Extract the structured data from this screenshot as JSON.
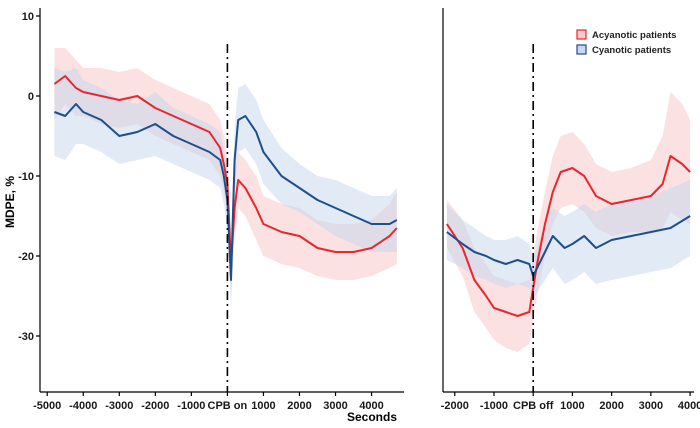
{
  "chart_data": {
    "type": "line",
    "ylabel": "MDPE, %",
    "xlabel": "Seconds",
    "ylim": [
      -37,
      11
    ],
    "y_ticks": [
      10,
      0,
      -10,
      -20,
      -30
    ],
    "legend": {
      "placement": "top-right",
      "entries": [
        {
          "name": "Acyanotic patients",
          "color": "#e8262d",
          "band_color": "#f7c9cb"
        },
        {
          "name": "Cyanotic patients",
          "color": "#1f4e8c",
          "band_color": "#c9d8ec"
        }
      ]
    },
    "panels": [
      {
        "xlim": [
          -5200,
          4900
        ],
        "x_ticks": [
          -5000,
          -4000,
          -3000,
          -2000,
          -1000,
          1000,
          2000,
          3000,
          4000
        ],
        "x_tick_labels": [
          "-5000",
          "-4000",
          "-3000",
          "-2000",
          "-1000",
          "1000",
          "2000",
          "3000",
          "4000"
        ],
        "event": {
          "x": 0,
          "label": "CPB on"
        },
        "series": [
          {
            "name": "Acyanotic patients",
            "x": [
              -4800,
              -4500,
              -4200,
              -4000,
              -3500,
              -3000,
              -2500,
              -2000,
              -1500,
              -1000,
              -500,
              -200,
              -100,
              0,
              100,
              200,
              300,
              500,
              800,
              1000,
              1500,
              2000,
              2500,
              3000,
              3500,
              4000,
              4500,
              4700
            ],
            "y": [
              1.5,
              2.5,
              1.0,
              0.5,
              0,
              -0.5,
              0,
              -1.5,
              -2.5,
              -3.5,
              -4.5,
              -6.5,
              -8.5,
              -11.0,
              -21.0,
              -14.0,
              -10.5,
              -11.5,
              -14.0,
              -16.0,
              -17.0,
              -17.5,
              -19.0,
              -19.5,
              -19.5,
              -19.0,
              -17.5,
              -16.5
            ],
            "upper": [
              6.0,
              6.0,
              4.5,
              3.5,
              3.5,
              3.0,
              3.5,
              2.0,
              1.0,
              0,
              -1.0,
              -3.0,
              -5.0,
              -8.0,
              -17.0,
              -10.0,
              -7.0,
              -8.0,
              -10.0,
              -12.5,
              -13.5,
              -14.0,
              -15.5,
              -16.0,
              -16.0,
              -15.5,
              -13.5,
              -12.0
            ],
            "lower": [
              -3.0,
              -1.0,
              -2.5,
              -2.5,
              -3.5,
              -4.0,
              -3.5,
              -5.0,
              -6.0,
              -7.0,
              -8.0,
              -10.0,
              -12.0,
              -14.5,
              -25.0,
              -18.0,
              -14.0,
              -15.0,
              -18.0,
              -20.0,
              -21.0,
              -21.5,
              -22.5,
              -23.0,
              -23.0,
              -22.5,
              -21.5,
              -21.0
            ]
          },
          {
            "name": "Cyanotic patients",
            "x": [
              -4800,
              -4500,
              -4200,
              -4000,
              -3500,
              -3000,
              -2500,
              -2000,
              -1500,
              -1000,
              -500,
              -200,
              -100,
              0,
              100,
              200,
              300,
              500,
              800,
              1000,
              1500,
              2000,
              2500,
              3000,
              3500,
              4000,
              4500,
              4700
            ],
            "y": [
              -2.0,
              -2.5,
              -1.0,
              -2.0,
              -3.0,
              -5.0,
              -4.5,
              -3.5,
              -5.0,
              -6.0,
              -7.0,
              -8.0,
              -10.0,
              -13.0,
              -23.0,
              -8.0,
              -3.0,
              -2.5,
              -4.5,
              -7.0,
              -10.0,
              -11.5,
              -13.0,
              -14.0,
              -15.0,
              -16.0,
              -16.0,
              -15.5
            ],
            "upper": [
              3.5,
              3.0,
              3.5,
              2.0,
              1.0,
              -0.5,
              -1.0,
              0.5,
              -1.5,
              -2.5,
              -3.5,
              -4.5,
              -6.5,
              -9.5,
              -18.0,
              -4.0,
              1.0,
              1.5,
              -0.5,
              -3.0,
              -6.5,
              -8.5,
              -10.0,
              -10.5,
              -11.5,
              -12.5,
              -12.5,
              -11.5
            ],
            "lower": [
              -7.5,
              -8.0,
              -6.0,
              -6.0,
              -7.0,
              -8.5,
              -8.0,
              -7.5,
              -8.5,
              -9.5,
              -10.5,
              -11.5,
              -13.5,
              -16.5,
              -27.0,
              -12.0,
              -7.0,
              -6.5,
              -8.5,
              -11.0,
              -13.5,
              -14.5,
              -16.0,
              -17.5,
              -18.5,
              -19.5,
              -19.5,
              -19.5
            ]
          }
        ]
      },
      {
        "xlim": [
          -2300,
          4100
        ],
        "x_ticks": [
          -2000,
          -1000,
          1000,
          2000,
          3000,
          4000
        ],
        "x_tick_labels": [
          "-2000",
          "-1000",
          "1000",
          "2000",
          "3000",
          "4000"
        ],
        "event": {
          "x": 0,
          "label": "CPB off"
        },
        "series": [
          {
            "name": "Acyanotic patients",
            "x": [
              -2200,
              -1800,
              -1500,
              -1200,
              -1000,
              -700,
              -400,
              -100,
              0,
              100,
              300,
              500,
              700,
              1000,
              1300,
              1600,
              2000,
              2500,
              3000,
              3300,
              3500,
              3800,
              4000
            ],
            "y": [
              -16.0,
              -19.0,
              -23.0,
              -25.0,
              -26.5,
              -27.0,
              -27.5,
              -27.0,
              -24.0,
              -21.0,
              -16.0,
              -12.0,
              -9.5,
              -9.0,
              -10.0,
              -12.5,
              -13.5,
              -13.0,
              -12.5,
              -11.0,
              -7.5,
              -8.5,
              -9.5
            ],
            "upper": [
              -13.0,
              -15.5,
              -19.0,
              -21.0,
              -22.5,
              -23.0,
              -23.5,
              -23.0,
              -20.0,
              -17.0,
              -12.0,
              -7.5,
              -5.0,
              -4.5,
              -6.0,
              -8.5,
              -9.5,
              -9.0,
              -8.0,
              -5.0,
              0.5,
              -1.0,
              -3.0
            ],
            "lower": [
              -19.0,
              -22.5,
              -27.0,
              -29.0,
              -30.5,
              -31.5,
              -32.0,
              -31.0,
              -28.0,
              -25.0,
              -20.0,
              -16.0,
              -14.0,
              -13.5,
              -14.5,
              -16.5,
              -17.5,
              -17.0,
              -17.0,
              -16.5,
              -14.5,
              -15.5,
              -16.0
            ]
          },
          {
            "name": "Cyanotic patients",
            "x": [
              -2200,
              -1800,
              -1500,
              -1200,
              -1000,
              -700,
              -400,
              -100,
              0,
              100,
              300,
              500,
              800,
              1000,
              1300,
              1600,
              2000,
              2500,
              3000,
              3500,
              4000
            ],
            "y": [
              -17.0,
              -18.5,
              -19.5,
              -20.0,
              -20.5,
              -21.0,
              -20.5,
              -21.0,
              -22.5,
              -21.5,
              -19.5,
              -17.5,
              -19.0,
              -18.5,
              -17.5,
              -19.0,
              -18.0,
              -17.5,
              -17.0,
              -16.5,
              -15.0
            ],
            "upper": [
              -13.5,
              -15.5,
              -16.5,
              -17.5,
              -18.0,
              -18.0,
              -17.5,
              -18.5,
              -20.0,
              -19.0,
              -16.0,
              -14.0,
              -15.0,
              -14.5,
              -13.5,
              -14.5,
              -13.5,
              -13.0,
              -12.5,
              -11.5,
              -10.5
            ],
            "lower": [
              -20.5,
              -21.5,
              -22.5,
              -23.0,
              -23.5,
              -24.0,
              -23.5,
              -24.0,
              -25.5,
              -24.5,
              -23.0,
              -21.5,
              -23.5,
              -23.0,
              -22.0,
              -23.5,
              -23.0,
              -22.5,
              -22.0,
              -21.5,
              -20.0
            ]
          }
        ]
      }
    ]
  }
}
